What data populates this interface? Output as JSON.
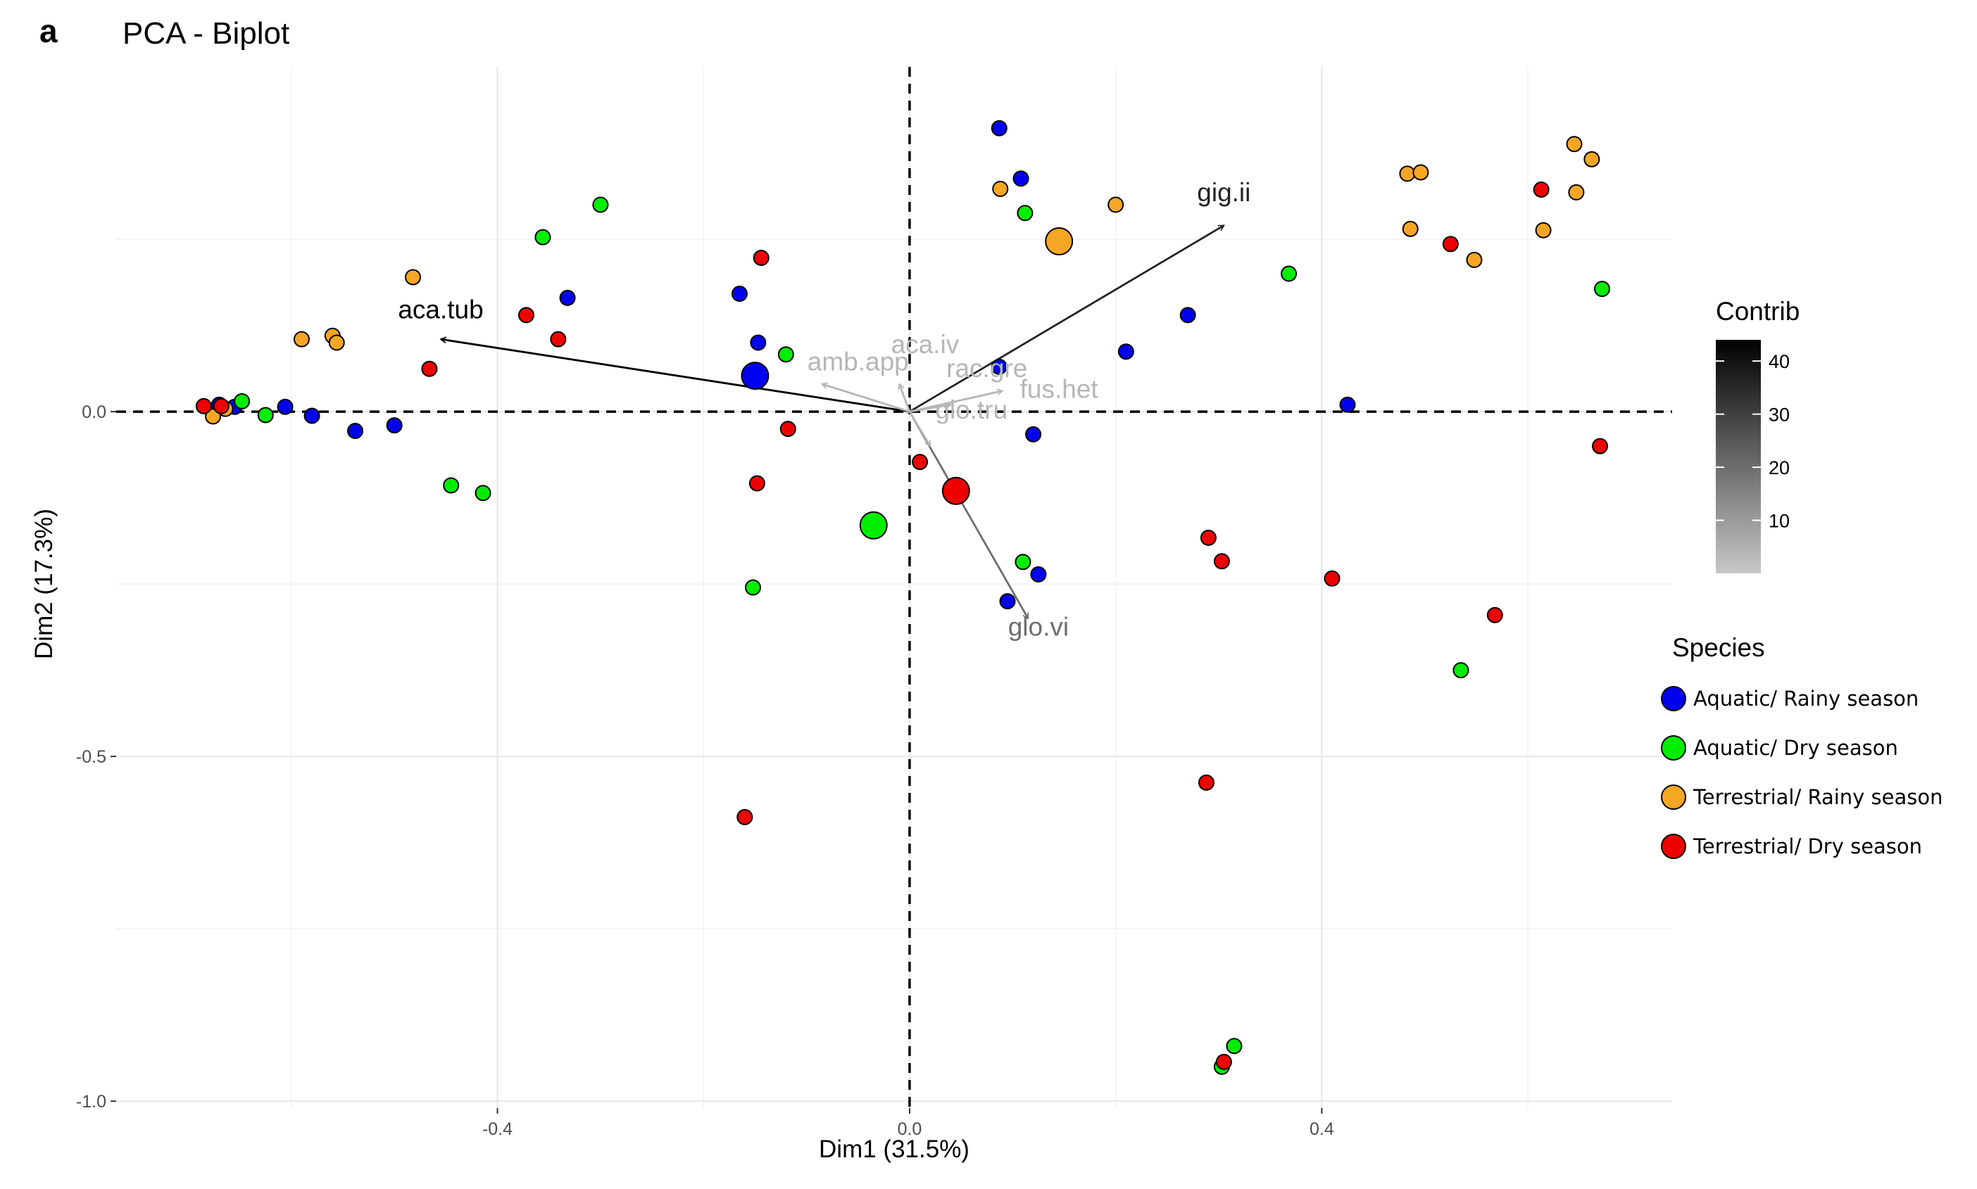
{
  "chart_data": {
    "type": "scatter",
    "panel_letter": "a",
    "title": "PCA - Biplot",
    "xlabel": "Dim1 (31.5%)",
    "ylabel": "Dim2 (17.3%)",
    "xlim": [
      -0.77,
      0.74
    ],
    "ylim": [
      -1.01,
      0.5
    ],
    "x_ticks": [
      -0.4,
      0.0,
      0.4
    ],
    "x_tick_labels": [
      "-0.4",
      "0.0",
      "0.4"
    ],
    "y_ticks": [
      0.0,
      -0.5,
      -1.0
    ],
    "y_tick_labels": [
      "0.0",
      "-0.5",
      "-1.0"
    ],
    "grid": true,
    "colors": {
      "Aquatic/ Rainy season": "#0000ee",
      "Aquatic/ Dry season": "#00ee00",
      "Terrestrial/ Rainy season": "#f5a623",
      "Terrestrial/ Dry season": "#ee0000"
    },
    "legend": {
      "title": "Species",
      "position": "right",
      "entries": [
        "Aquatic/ Rainy season",
        "Aquatic/ Dry season",
        "Terrestrial/ Rainy season",
        "Terrestrial/ Dry season"
      ]
    },
    "colorbar": {
      "title": "Contrib",
      "ticks": [
        10,
        20,
        30,
        40
      ],
      "tick_labels": [
        "10",
        "20",
        "30",
        "40"
      ],
      "range": [
        0,
        44
      ]
    },
    "variables": [
      {
        "name": "aca.tub",
        "x": -0.455,
        "y": 0.105,
        "contrib": 44
      },
      {
        "name": "gig.ii",
        "x": 0.305,
        "y": 0.27,
        "contrib": 36
      },
      {
        "name": "glo.vi",
        "x": 0.115,
        "y": -0.3,
        "contrib": 20
      },
      {
        "name": "amb.app",
        "x": -0.085,
        "y": 0.04,
        "contrib": 4
      },
      {
        "name": "aca.iv",
        "x": -0.01,
        "y": 0.04,
        "contrib": 4
      },
      {
        "name": "rac.gre",
        "x": 0.04,
        "y": 0.01,
        "contrib": 4
      },
      {
        "name": "fus.het",
        "x": 0.09,
        "y": 0.03,
        "contrib": 4
      },
      {
        "name": "glo.tru",
        "x": 0.02,
        "y": -0.05,
        "contrib": 4
      }
    ],
    "variable_labels": [
      {
        "name": "aca.tub",
        "x": -0.455,
        "y": 0.135
      },
      {
        "name": "gig.ii",
        "x": 0.305,
        "y": 0.305
      },
      {
        "name": "glo.vi",
        "x": 0.125,
        "y": -0.325
      },
      {
        "name": "amb.app",
        "x": -0.05,
        "y": 0.06
      },
      {
        "name": "aca.iv",
        "x": 0.015,
        "y": 0.085
      },
      {
        "name": "rac.gre",
        "x": 0.075,
        "y": 0.05
      },
      {
        "name": "fus.het",
        "x": 0.145,
        "y": 0.02
      },
      {
        "name": "glo.tru",
        "x": 0.06,
        "y": -0.01
      }
    ],
    "series": [
      {
        "name": "Aquatic/ Rainy season",
        "points": [
          {
            "x": 0.087,
            "y": 0.411
          },
          {
            "x": 0.108,
            "y": 0.338
          },
          {
            "x": -0.165,
            "y": 0.171
          },
          {
            "x": -0.332,
            "y": 0.165
          },
          {
            "x": -0.147,
            "y": 0.1
          },
          {
            "x": 0.27,
            "y": 0.14
          },
          {
            "x": 0.21,
            "y": 0.087
          },
          {
            "x": 0.087,
            "y": 0.065
          },
          {
            "x": -0.15,
            "y": 0.052,
            "size": "large"
          },
          {
            "x": 0.425,
            "y": 0.01
          },
          {
            "x": -0.606,
            "y": 0.007
          },
          {
            "x": -0.58,
            "y": -0.006
          },
          {
            "x": -0.538,
            "y": -0.028
          },
          {
            "x": -0.5,
            "y": -0.02
          },
          {
            "x": 0.12,
            "y": -0.033
          },
          {
            "x": 0.125,
            "y": -0.236
          },
          {
            "x": 0.095,
            "y": -0.275
          },
          {
            "x": -0.67,
            "y": 0.01
          },
          {
            "x": -0.655,
            "y": 0.007
          }
        ]
      },
      {
        "name": "Aquatic/ Dry season",
        "points": [
          {
            "x": -0.3,
            "y": 0.3
          },
          {
            "x": -0.356,
            "y": 0.253
          },
          {
            "x": 0.112,
            "y": 0.288
          },
          {
            "x": 0.368,
            "y": 0.2
          },
          {
            "x": 0.672,
            "y": 0.178
          },
          {
            "x": -0.12,
            "y": 0.083
          },
          {
            "x": -0.648,
            "y": 0.015
          },
          {
            "x": -0.625,
            "y": -0.005
          },
          {
            "x": -0.445,
            "y": -0.107
          },
          {
            "x": -0.414,
            "y": -0.118
          },
          {
            "x": -0.035,
            "y": -0.165,
            "size": "large"
          },
          {
            "x": 0.11,
            "y": -0.218
          },
          {
            "x": -0.152,
            "y": -0.255
          },
          {
            "x": 0.535,
            "y": -0.375
          },
          {
            "x": 0.315,
            "y": -0.92
          },
          {
            "x": 0.303,
            "y": -0.95
          }
        ]
      },
      {
        "name": "Terrestrial/ Rainy season",
        "points": [
          {
            "x": 0.645,
            "y": 0.388
          },
          {
            "x": 0.662,
            "y": 0.366
          },
          {
            "x": 0.483,
            "y": 0.345
          },
          {
            "x": 0.496,
            "y": 0.347
          },
          {
            "x": 0.088,
            "y": 0.323
          },
          {
            "x": 0.2,
            "y": 0.3
          },
          {
            "x": 0.647,
            "y": 0.318
          },
          {
            "x": 0.145,
            "y": 0.247,
            "size": "large"
          },
          {
            "x": 0.486,
            "y": 0.265
          },
          {
            "x": 0.615,
            "y": 0.263
          },
          {
            "x": 0.548,
            "y": 0.22
          },
          {
            "x": -0.482,
            "y": 0.195
          },
          {
            "x": -0.59,
            "y": 0.105
          },
          {
            "x": -0.56,
            "y": 0.11
          },
          {
            "x": -0.556,
            "y": 0.1
          },
          {
            "x": -0.676,
            "y": -0.007
          },
          {
            "x": -0.664,
            "y": 0.004
          }
        ]
      },
      {
        "name": "Terrestrial/ Dry season",
        "points": [
          {
            "x": 0.613,
            "y": 0.322
          },
          {
            "x": 0.525,
            "y": 0.243
          },
          {
            "x": -0.144,
            "y": 0.223
          },
          {
            "x": -0.372,
            "y": 0.14
          },
          {
            "x": -0.341,
            "y": 0.105
          },
          {
            "x": -0.466,
            "y": 0.062
          },
          {
            "x": -0.685,
            "y": 0.008
          },
          {
            "x": -0.668,
            "y": 0.008
          },
          {
            "x": -0.118,
            "y": -0.025
          },
          {
            "x": 0.01,
            "y": -0.073
          },
          {
            "x": 0.045,
            "y": -0.115,
            "size": "large"
          },
          {
            "x": -0.148,
            "y": -0.104
          },
          {
            "x": 0.67,
            "y": -0.05
          },
          {
            "x": 0.29,
            "y": -0.183
          },
          {
            "x": 0.303,
            "y": -0.217
          },
          {
            "x": 0.41,
            "y": -0.242
          },
          {
            "x": 0.568,
            "y": -0.295
          },
          {
            "x": 0.288,
            "y": -0.538
          },
          {
            "x": -0.16,
            "y": -0.588
          },
          {
            "x": 0.305,
            "y": -0.943
          }
        ]
      }
    ]
  }
}
